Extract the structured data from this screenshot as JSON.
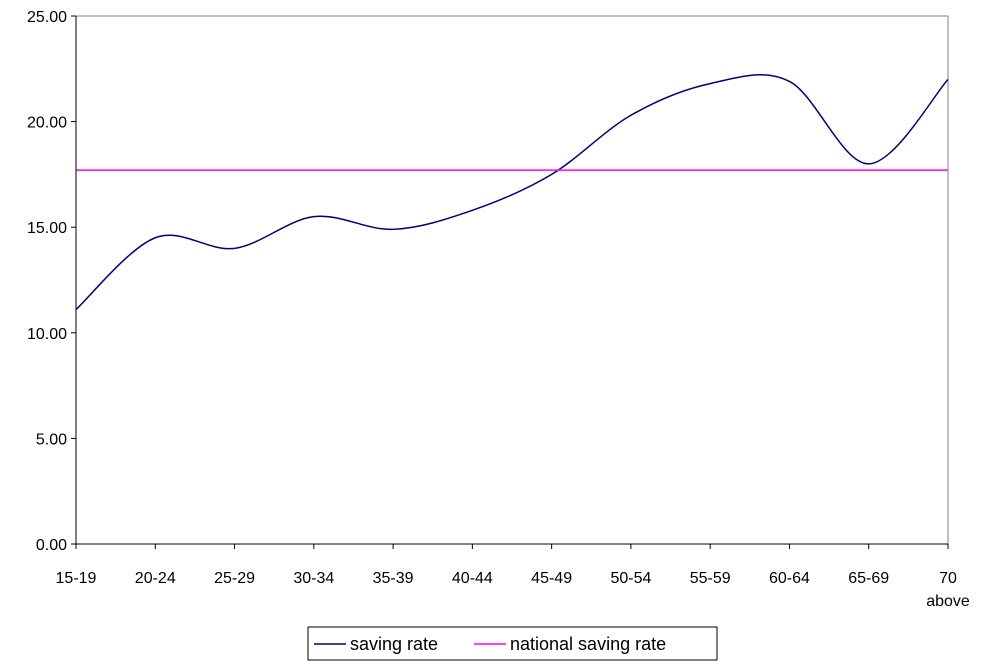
{
  "chart_data": {
    "type": "line",
    "title": "",
    "xlabel": "",
    "ylabel": "",
    "categories": [
      "15-19",
      "20-24",
      "25-29",
      "30-34",
      "35-39",
      "40-44",
      "45-49",
      "50-54",
      "55-59",
      "60-64",
      "65-69",
      "70 above"
    ],
    "category_lines": [
      [
        "15-19"
      ],
      [
        "20-24"
      ],
      [
        "25-29"
      ],
      [
        "30-34"
      ],
      [
        "35-39"
      ],
      [
        "40-44"
      ],
      [
        "45-49"
      ],
      [
        "50-54"
      ],
      [
        "55-59"
      ],
      [
        "60-64"
      ],
      [
        "65-69"
      ],
      [
        "70",
        "above"
      ]
    ],
    "ylim": [
      0,
      25
    ],
    "yticks": [
      0,
      5,
      10,
      15,
      20,
      25
    ],
    "ytick_labels": [
      "0.00",
      "5.00",
      "10.00",
      "15.00",
      "20.00",
      "25.00"
    ],
    "grid": false,
    "legend": "bottom",
    "series": [
      {
        "name": "saving rate",
        "color": "#000080",
        "values": [
          11.1,
          14.5,
          14.0,
          15.5,
          14.9,
          15.8,
          17.5,
          20.3,
          21.8,
          21.9,
          18.0,
          22.0
        ]
      },
      {
        "name": "national saving rate",
        "color": "#ff00ff",
        "values": [
          17.7,
          17.7,
          17.7,
          17.7,
          17.7,
          17.7,
          17.7,
          17.7,
          17.7,
          17.7,
          17.7,
          17.7
        ]
      }
    ]
  }
}
